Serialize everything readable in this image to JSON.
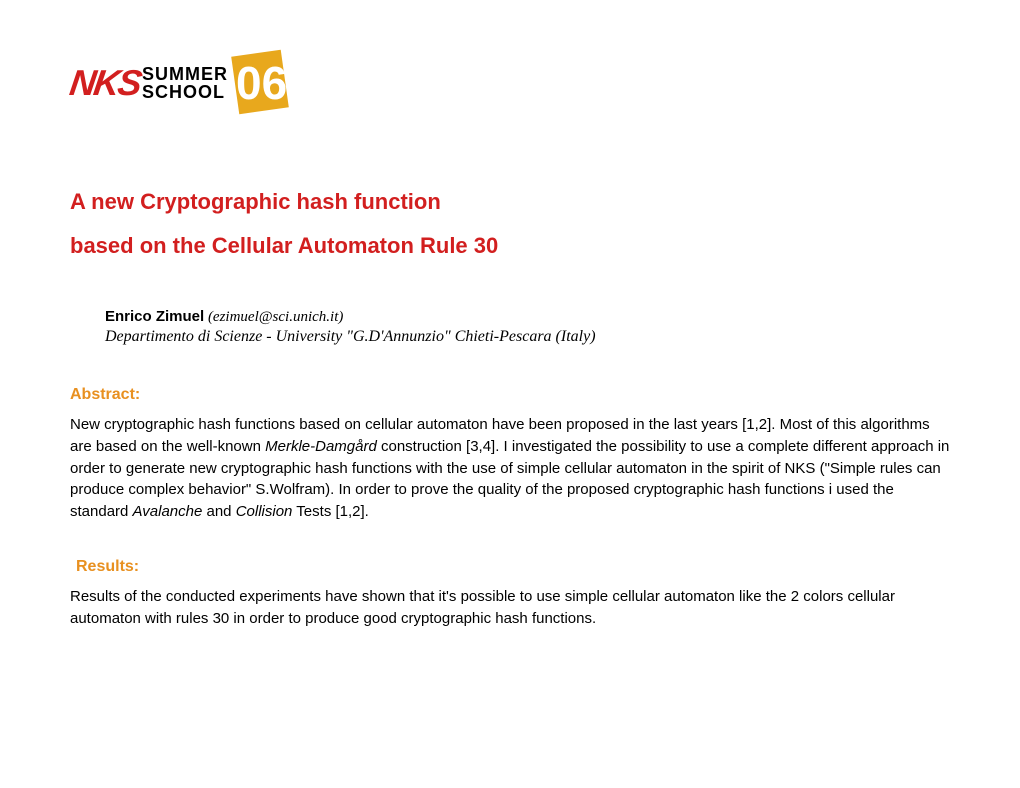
{
  "logo": {
    "nks": "NKS",
    "summer": "SUMMER",
    "school": "SCHOOL",
    "year": "06"
  },
  "title": {
    "line1": "A new Cryptographic hash function",
    "line2": "based on the Cellular Automaton Rule 30"
  },
  "author": {
    "name": "Enrico Zimuel",
    "email": " (ezimuel@sci.unich.it)",
    "affiliation": "Departimento di Scienze - University \"G.D'Annunzio\" Chieti-Pescara (Italy)"
  },
  "abstract": {
    "heading": "Abstract:",
    "text_p1": "New cryptographic  hash  functions based  on cellular automaton  have been proposed  in the last years [1,2]. Most of this algorithms are based  on the well-known  ",
    "text_i1": "Merkle-Damgård",
    "text_p2": " construction [3,4]. I investigated  the possibility to use a complete different approach  in order to generate new cryptographic hash functions  with the use of simple cellular automaton  in the spirit of NKS (\"Simple rules can produce complex behavior\" S.Wolfram). In order to prove the quality of the proposed  cryptographic  hash functions i used the standard ",
    "text_i2": "Avalanche",
    "text_p3": " and ",
    "text_i3": "Collision",
    "text_p4": " Tests [1,2]."
  },
  "results": {
    "heading": "Results:",
    "text": "Results of the conducted experiments have shown  that it's possible  to use simple cellular automaton  like the 2 colors cellular automaton with rules 30 in order to produce good cryptographic  hash functions."
  },
  "colors": {
    "red": "#d21f1f",
    "orange": "#e89020",
    "logo_yellow": "#e8a81d",
    "text": "#000000",
    "background": "#ffffff"
  },
  "typography": {
    "title_fontsize": 22,
    "heading_fontsize": 16,
    "body_fontsize": 15,
    "author_fontsize": 15
  }
}
